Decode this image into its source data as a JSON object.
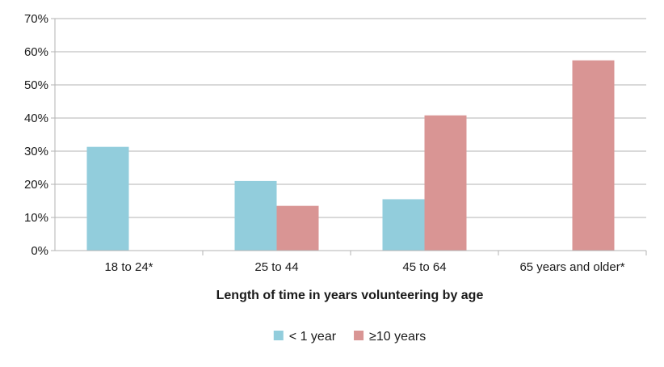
{
  "chart_data": {
    "type": "bar",
    "title": "",
    "xlabel": "Length of time in years volunteering by age",
    "ylabel": "",
    "categories": [
      "18 to 24*",
      "25 to 44",
      "45 to 64",
      "65 years and older*"
    ],
    "series": [
      {
        "name": "< 1 year",
        "color": "#92cddc",
        "values": [
          31.3,
          21.0,
          15.5,
          null
        ]
      },
      {
        "name": "≥10 years",
        "color": "#d99594",
        "values": [
          null,
          13.5,
          40.8,
          57.4
        ]
      }
    ],
    "ylim": [
      0,
      70
    ],
    "yticks": [
      0,
      10,
      20,
      30,
      40,
      50,
      60,
      70
    ],
    "ytick_format": "percent",
    "grid": true,
    "gridColor": "#b3b3b3",
    "legend": "bottom-center"
  }
}
